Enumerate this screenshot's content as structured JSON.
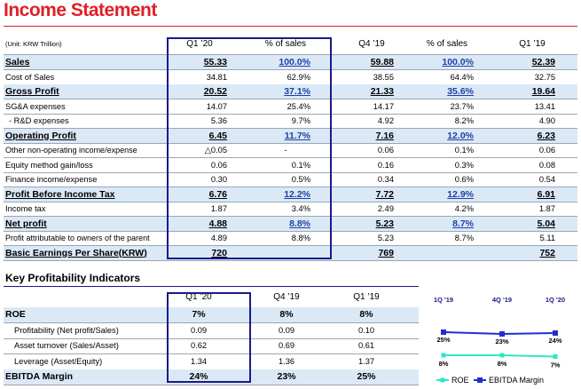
{
  "title": "Income Statement",
  "income_statement": {
    "unit": "(Unit: KRW Trillion)",
    "columns": [
      "Q1 ’20",
      "% of sales",
      "Q4 ’19",
      "% of sales",
      "Q1 ’19"
    ],
    "rows": [
      {
        "label": "Sales",
        "v": [
          "55.33",
          "100.0%",
          "59.88",
          "100.0%",
          "52.39"
        ]
      },
      {
        "label": "Cost of Sales",
        "v": [
          "34.81",
          "62.9%",
          "38.55",
          "64.4%",
          "32.75"
        ]
      },
      {
        "label": "Gross Profit",
        "v": [
          "20.52",
          "37.1%",
          "21.33",
          "35.6%",
          "19.64"
        ]
      },
      {
        "label": "SG&A expenses",
        "v": [
          "14.07",
          "25.4%",
          "14.17",
          "23.7%",
          "13.41"
        ]
      },
      {
        "label": "- R&D expenses",
        "v": [
          "5.36",
          "9.7%",
          "4.92",
          "8.2%",
          "4.90"
        ]
      },
      {
        "label": "Operating Profit",
        "v": [
          "6.45",
          "11.7%",
          "7.16",
          "12.0%",
          "6.23"
        ]
      },
      {
        "label": "Other non-operating income/expense",
        "v": [
          "△0.05",
          "-",
          "0.06",
          "0.1%",
          "0.06"
        ]
      },
      {
        "label": "Equity method gain/loss",
        "v": [
          "0.06",
          "0.1%",
          "0.16",
          "0.3%",
          "0.08"
        ]
      },
      {
        "label": "Finance income/expense",
        "v": [
          "0.30",
          "0.5%",
          "0.34",
          "0.6%",
          "0.54"
        ]
      },
      {
        "label": "Profit Before Income Tax",
        "v": [
          "6.76",
          "12.2%",
          "7.72",
          "12.9%",
          "6.91"
        ]
      },
      {
        "label": "Income tax",
        "v": [
          "1.87",
          "3.4%",
          "2.49",
          "4.2%",
          "1.87"
        ]
      },
      {
        "label": "Net profit",
        "v": [
          "4.88",
          "8.8%",
          "5.23",
          "8.7%",
          "5.04"
        ]
      },
      {
        "label": "Profit attributable to owners of the parent",
        "v": [
          "4.89",
          "8.8%",
          "5.23",
          "8.7%",
          "5.11"
        ]
      },
      {
        "label": "Basic Earnings Per Share(KRW)",
        "v": [
          "720",
          "",
          "769",
          "",
          "752"
        ]
      }
    ]
  },
  "kpi": {
    "title": "Key Profitability Indicators",
    "columns": [
      "Q1 ’20",
      "Q4 ’19",
      "Q1 ’19"
    ],
    "rows": [
      {
        "label": "ROE",
        "v": [
          "7%",
          "8%",
          "8%"
        ]
      },
      {
        "label": "Profitability (Net profit/Sales)",
        "v": [
          "0.09",
          "0.09",
          "0.10"
        ]
      },
      {
        "label": "Asset turnover (Sales/Asset)",
        "v": [
          "0.62",
          "0.69",
          "0.61"
        ]
      },
      {
        "label": "Leverage (Asset/Equity)",
        "v": [
          "1.34",
          "1.36",
          "1.37"
        ]
      },
      {
        "label": "EBITDA Margin",
        "v": [
          "24%",
          "23%",
          "25%"
        ]
      }
    ]
  },
  "chart_data": {
    "type": "line",
    "categories": [
      "1Q '19",
      "4Q '19",
      "1Q '20"
    ],
    "series": [
      {
        "name": "EBITDA Margin",
        "values": [
          25,
          23,
          24
        ],
        "labels": [
          "25%",
          "23%",
          "24%"
        ],
        "color": "#1f2fd0"
      },
      {
        "name": "ROE",
        "values": [
          8,
          8,
          7
        ],
        "labels": [
          "8%",
          "8%",
          "7%"
        ],
        "color": "#2ee6c9"
      }
    ],
    "legend": [
      "ROE",
      "EBITDA Margin"
    ]
  },
  "colors": {
    "accent": "#e01f26",
    "highlight": "#dbe9f6",
    "box": "#1a1a8c"
  }
}
